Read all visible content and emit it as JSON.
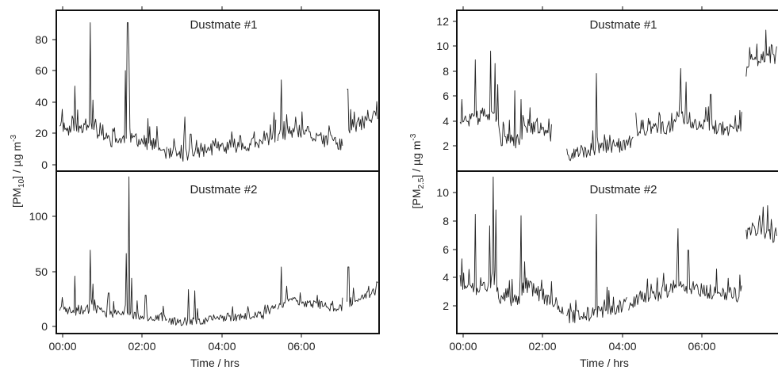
{
  "chart_data": [
    {
      "type": "line",
      "title": "Dustmate #1",
      "xlabel": "Time / hrs",
      "ylabel": "[PM10] / µg m-3",
      "ylim": [
        -4,
        100
      ],
      "xlim": [
        -0.08,
        7.8
      ],
      "xticks": [
        "00:00",
        "02:00",
        "04:00",
        "06:00"
      ],
      "yticks": [
        0,
        20,
        40,
        60,
        80
      ],
      "baseline": [
        [
          0,
          27
        ],
        [
          0.2,
          22
        ],
        [
          0.5,
          24
        ],
        [
          0.8,
          26
        ],
        [
          1.0,
          18
        ],
        [
          1.3,
          15
        ],
        [
          1.55,
          16
        ],
        [
          1.8,
          17
        ],
        [
          2.1,
          14
        ],
        [
          2.4,
          12
        ],
        [
          2.6,
          6
        ],
        [
          3.0,
          6
        ],
        [
          3.4,
          9
        ],
        [
          3.8,
          10
        ],
        [
          4.2,
          12
        ],
        [
          4.8,
          13
        ],
        [
          5.2,
          18
        ],
        [
          5.6,
          20
        ],
        [
          6.0,
          19
        ],
        [
          6.4,
          16
        ],
        [
          6.9,
          13
        ],
        [
          7.0,
          22
        ],
        [
          7.4,
          27
        ],
        [
          7.8,
          32
        ]
      ],
      "spikes": [
        [
          0.07,
          36
        ],
        [
          0.38,
          51
        ],
        [
          0.75,
          92
        ],
        [
          0.82,
          42
        ],
        [
          1.05,
          26
        ],
        [
          1.35,
          24
        ],
        [
          1.6,
          61
        ],
        [
          1.66,
          92
        ],
        [
          1.7,
          72
        ],
        [
          2.15,
          30
        ],
        [
          3.05,
          31
        ],
        [
          3.2,
          20
        ],
        [
          4.4,
          19
        ],
        [
          5.0,
          22
        ],
        [
          5.15,
          26
        ],
        [
          5.42,
          55
        ],
        [
          6.05,
          25
        ],
        [
          6.6,
          22
        ],
        [
          7.03,
          49
        ],
        [
          7.75,
          41
        ]
      ],
      "gaps": [
        [
          2.63,
          2.64
        ],
        [
          5.3,
          5.31
        ],
        [
          6.92,
          7.0
        ]
      ],
      "noise": 7,
      "seed": 11
    },
    {
      "type": "line",
      "title": "Dustmate #2",
      "xlabel": "Time / hrs",
      "ylabel": "[PM10] / µg m-3",
      "ylim": [
        -4,
        140
      ],
      "xlim": [
        -0.08,
        7.8
      ],
      "xticks": [
        "00:00",
        "02:00",
        "04:00",
        "06:00"
      ],
      "yticks": [
        0,
        50,
        100
      ],
      "baseline": [
        [
          0,
          18
        ],
        [
          0.4,
          15
        ],
        [
          0.8,
          18
        ],
        [
          1.2,
          13
        ],
        [
          1.6,
          14
        ],
        [
          2.0,
          11
        ],
        [
          2.4,
          9
        ],
        [
          2.7,
          7
        ],
        [
          3.2,
          6
        ],
        [
          3.6,
          8
        ],
        [
          4.0,
          10
        ],
        [
          4.5,
          11
        ],
        [
          5.0,
          12
        ],
        [
          5.3,
          20
        ],
        [
          5.6,
          25
        ],
        [
          6.0,
          22
        ],
        [
          6.5,
          20
        ],
        [
          6.9,
          18
        ],
        [
          7.0,
          22
        ],
        [
          7.4,
          28
        ],
        [
          7.8,
          33
        ]
      ],
      "spikes": [
        [
          0.07,
          28
        ],
        [
          0.37,
          47
        ],
        [
          0.75,
          70
        ],
        [
          0.82,
          40
        ],
        [
          1.2,
          32
        ],
        [
          1.62,
          67
        ],
        [
          1.7,
          135
        ],
        [
          1.76,
          45
        ],
        [
          2.1,
          30
        ],
        [
          3.15,
          35
        ],
        [
          3.3,
          34
        ],
        [
          4.6,
          20
        ],
        [
          5.42,
          55
        ],
        [
          5.55,
          38
        ],
        [
          6.3,
          30
        ],
        [
          7.05,
          55
        ],
        [
          7.75,
          42
        ]
      ],
      "gaps": [
        [
          2.63,
          2.64
        ],
        [
          5.3,
          5.31
        ],
        [
          6.92,
          7.0
        ]
      ],
      "noise": 6,
      "seed": 23
    },
    {
      "type": "line",
      "title": "Dustmate #1",
      "xlabel": "Time / hrs",
      "ylabel": "[PM2.5] / µg m-3",
      "ylim": [
        0,
        13
      ],
      "xlim": [
        -0.08,
        7.8
      ],
      "xticks": [
        "00:00",
        "02:00",
        "04:00",
        "06:00"
      ],
      "yticks": [
        2,
        4,
        6,
        8,
        10,
        12
      ],
      "baseline": [
        [
          0,
          4.2
        ],
        [
          0.3,
          4.0
        ],
        [
          0.6,
          4.6
        ],
        [
          0.9,
          4.0
        ],
        [
          1.0,
          2.5
        ],
        [
          1.4,
          2.3
        ],
        [
          1.6,
          3.6
        ],
        [
          2.0,
          3.4
        ],
        [
          2.2,
          2.6
        ],
        [
          2.4,
          3.2
        ],
        [
          2.6,
          1.2
        ],
        [
          3.0,
          1.5
        ],
        [
          3.5,
          1.8
        ],
        [
          4.0,
          2.0
        ],
        [
          4.2,
          2.1
        ],
        [
          4.3,
          3.2
        ],
        [
          4.8,
          3.3
        ],
        [
          5.2,
          3.6
        ],
        [
          5.3,
          4.6
        ],
        [
          5.6,
          4.1
        ],
        [
          6.0,
          3.6
        ],
        [
          6.5,
          3.4
        ],
        [
          6.9,
          3.0
        ],
        [
          7.0,
          8.0
        ],
        [
          7.4,
          9.2
        ],
        [
          7.8,
          9.0
        ]
      ],
      "spikes": [
        [
          0.05,
          5.8
        ],
        [
          0.38,
          9.0
        ],
        [
          0.75,
          9.7
        ],
        [
          0.85,
          8.7
        ],
        [
          0.92,
          7.0
        ],
        [
          1.35,
          6.5
        ],
        [
          1.5,
          5.8
        ],
        [
          3.35,
          7.9
        ],
        [
          4.9,
          4.5
        ],
        [
          5.42,
          8.3
        ],
        [
          5.55,
          7.2
        ],
        [
          6.15,
          6.2
        ],
        [
          6.75,
          4.5
        ],
        [
          7.1,
          10.0
        ],
        [
          7.5,
          11.4
        ],
        [
          7.78,
          10.3
        ]
      ],
      "gaps": [
        [
          2.26,
          2.6
        ],
        [
          4.25,
          4.3
        ],
        [
          5.28,
          5.3
        ],
        [
          6.92,
          7.0
        ]
      ],
      "noise": 0.9,
      "seed": 37
    },
    {
      "type": "line",
      "title": "Dustmate #2",
      "xlabel": "Time / hrs",
      "ylabel": "[PM2.5] / µg m-3",
      "ylim": [
        0,
        11.3
      ],
      "xlim": [
        -0.08,
        7.8
      ],
      "xticks": [
        "00:00",
        "02:00",
        "04:00",
        "06:00"
      ],
      "yticks": [
        2,
        4,
        6,
        8,
        10
      ],
      "baseline": [
        [
          0,
          3.2
        ],
        [
          0.3,
          3.0
        ],
        [
          0.6,
          3.4
        ],
        [
          0.9,
          3.3
        ],
        [
          1.0,
          2.3
        ],
        [
          1.4,
          2.2
        ],
        [
          1.6,
          3.4
        ],
        [
          2.0,
          2.6
        ],
        [
          2.4,
          2.0
        ],
        [
          2.6,
          1.2
        ],
        [
          3.0,
          1.2
        ],
        [
          3.5,
          1.5
        ],
        [
          4.0,
          1.8
        ],
        [
          4.5,
          2.4
        ],
        [
          5.0,
          2.8
        ],
        [
          5.3,
          3.4
        ],
        [
          5.6,
          3.1
        ],
        [
          6.0,
          2.9
        ],
        [
          6.5,
          2.7
        ],
        [
          6.9,
          2.6
        ],
        [
          7.0,
          6.8
        ],
        [
          7.4,
          7.2
        ],
        [
          7.8,
          6.5
        ]
      ],
      "spikes": [
        [
          0.05,
          5.2
        ],
        [
          0.38,
          8.3
        ],
        [
          0.72,
          7.5
        ],
        [
          0.82,
          10.9
        ],
        [
          0.88,
          8.6
        ],
        [
          1.5,
          8.2
        ],
        [
          1.58,
          5.0
        ],
        [
          3.35,
          8.3
        ],
        [
          3.65,
          3.0
        ],
        [
          5.0,
          4.2
        ],
        [
          5.35,
          7.3
        ],
        [
          5.6,
          5.8
        ],
        [
          6.3,
          4.5
        ],
        [
          7.0,
          8.3
        ],
        [
          7.55,
          8.9
        ],
        [
          7.8,
          10.0
        ]
      ],
      "gaps": [
        [
          2.55,
          2.6
        ],
        [
          4.1,
          4.12
        ],
        [
          6.92,
          7.0
        ]
      ],
      "noise": 0.8,
      "seed": 51
    }
  ]
}
